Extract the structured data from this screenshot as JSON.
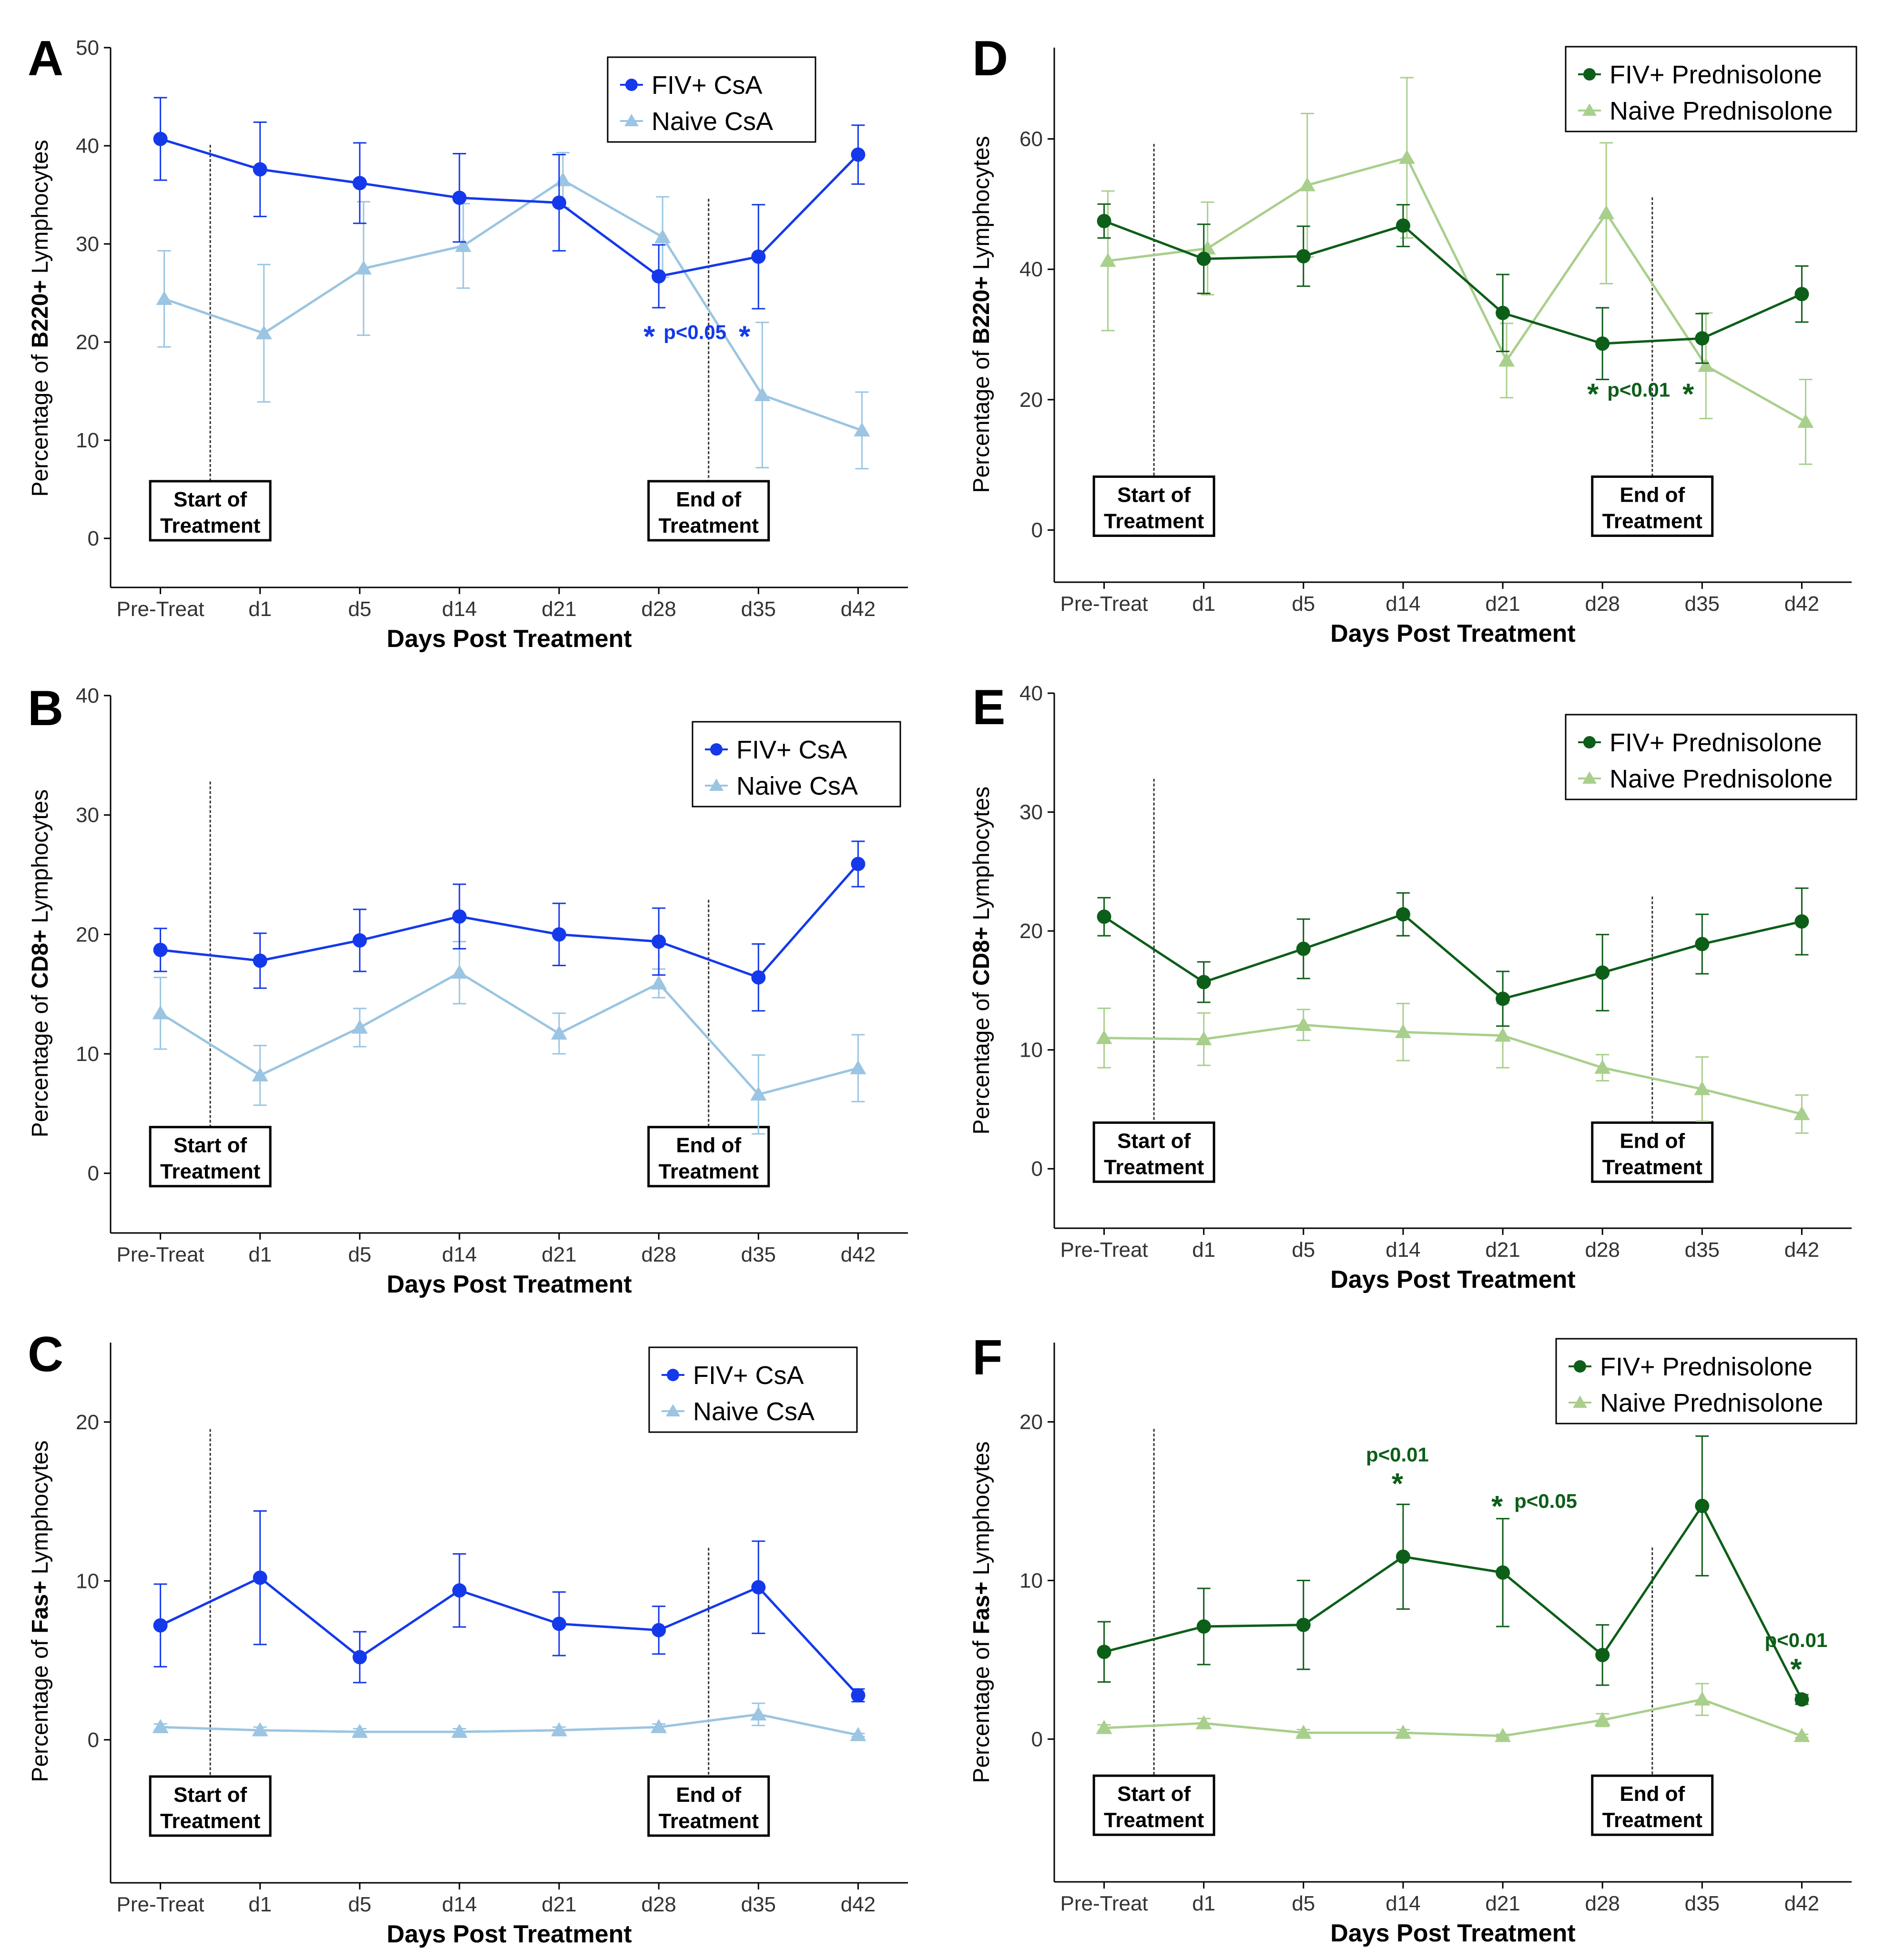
{
  "colors": {
    "fiv_csa": "#1439ea",
    "naive_csa": "#9bc5e2",
    "fiv_pred": "#0d5e18",
    "naive_pred": "#a9cf8c"
  },
  "shared": {
    "xlabel": "Days Post Treatment",
    "categories": [
      "Pre-Treat",
      "d1",
      "d5",
      "d14",
      "d21",
      "d28",
      "d35",
      "d42"
    ],
    "ylabel_prefix": "Percentage of ",
    "ylabel_suffix": " Lymphocytes",
    "start_box": [
      "Start of",
      "Treatment"
    ],
    "end_box": [
      "End of",
      "Treatment"
    ]
  },
  "chart_data": [
    {
      "panel": "A",
      "type": "line",
      "title": "",
      "xlabel": "Days Post Treatment",
      "ylabel": "Percentage of B220+ Lymphocytes",
      "ylabel_marker": "B220+",
      "ylim": [
        -5,
        50
      ],
      "yticks": [
        0,
        10,
        20,
        30,
        40,
        50
      ],
      "categories": [
        "Pre-Treat",
        "d1",
        "d5",
        "d14",
        "d21",
        "d28",
        "d35",
        "d42"
      ],
      "series": [
        {
          "name": "FIV+ CsA",
          "marker": "circle",
          "color": "#1439ea",
          "values": [
            40.7,
            37.6,
            36.2,
            34.7,
            34.2,
            26.7,
            28.7,
            39.1
          ],
          "err": [
            4.2,
            4.8,
            4.1,
            4.5,
            4.9,
            3.2,
            5.3,
            3.0
          ]
        },
        {
          "name": "Naive CsA",
          "marker": "triangle",
          "color": "#9bc5e2",
          "values": [
            24.4,
            20.9,
            27.5,
            29.8,
            36.5,
            30.7,
            14.6,
            11.0
          ],
          "err": [
            4.9,
            7.0,
            6.8,
            4.3,
            2.8,
            4.1,
            7.4,
            3.9
          ]
        }
      ],
      "legend": "top-right",
      "annotations": [
        {
          "label": "p<0.05",
          "star_left": "*",
          "star_right": "*",
          "color": "#1439ea"
        }
      ]
    },
    {
      "panel": "B",
      "type": "line",
      "title": "",
      "xlabel": "Days Post Treatment",
      "ylabel": "Percentage of CD8+ Lymphocytes",
      "ylabel_marker": "CD8+",
      "ylim": [
        -5,
        40
      ],
      "yticks": [
        0,
        10,
        20,
        30,
        40
      ],
      "categories": [
        "Pre-Treat",
        "d1",
        "d5",
        "d14",
        "d21",
        "d28",
        "d35",
        "d42"
      ],
      "series": [
        {
          "name": "FIV+ CsA",
          "marker": "circle",
          "color": "#1439ea",
          "values": [
            18.7,
            17.8,
            19.5,
            21.5,
            20.0,
            19.4,
            16.4,
            25.9
          ],
          "err": [
            1.8,
            2.3,
            2.6,
            2.7,
            2.6,
            2.8,
            2.8,
            1.9
          ]
        },
        {
          "name": "Naive CsA",
          "marker": "triangle",
          "color": "#9bc5e2",
          "values": [
            13.4,
            8.2,
            12.2,
            16.8,
            11.7,
            15.9,
            6.6,
            8.8
          ],
          "err": [
            3.0,
            2.5,
            1.6,
            2.6,
            1.7,
            1.2,
            3.3,
            2.8
          ]
        }
      ],
      "legend": "top-right",
      "annotations": []
    },
    {
      "panel": "C",
      "type": "line",
      "title": "",
      "xlabel": "Days Post Treatment",
      "ylabel": "Percentage of Fas+ Lymphocytes",
      "ylabel_marker": "Fas+",
      "ylim": [
        -9,
        25
      ],
      "yticks": [
        0,
        10,
        20
      ],
      "categories": [
        "Pre-Treat",
        "d1",
        "d5",
        "d14",
        "d21",
        "d28",
        "d35",
        "d42"
      ],
      "series": [
        {
          "name": "FIV+ CsA",
          "marker": "circle",
          "color": "#1439ea",
          "values": [
            7.2,
            10.2,
            5.2,
            9.4,
            7.3,
            6.9,
            9.6,
            2.8
          ],
          "err": [
            2.6,
            4.2,
            1.6,
            2.3,
            2.0,
            1.5,
            2.9,
            0.4
          ]
        },
        {
          "name": "Naive CsA",
          "marker": "triangle",
          "color": "#9bc5e2",
          "values": [
            0.8,
            0.6,
            0.5,
            0.5,
            0.6,
            0.8,
            1.6,
            0.3
          ],
          "err": [
            0.2,
            0.2,
            0.2,
            0.2,
            0.2,
            0.2,
            0.7,
            0.1
          ]
        }
      ],
      "legend": "top-right",
      "annotations": []
    },
    {
      "panel": "D",
      "type": "line",
      "title": "",
      "xlabel": "Days Post Treatment",
      "ylabel": "Percentage of B220+ Lymphocytes",
      "ylabel_marker": "B220+",
      "ylim": [
        -8,
        74
      ],
      "yticks": [
        0,
        20,
        40,
        60
      ],
      "categories": [
        "Pre-Treat",
        "d1",
        "d5",
        "d14",
        "d21",
        "d28",
        "d35",
        "d42"
      ],
      "series": [
        {
          "name": "FIV+ Prednisolone",
          "marker": "circle",
          "color": "#0d5e18",
          "values": [
            47.4,
            41.6,
            42.0,
            46.7,
            33.3,
            28.6,
            29.4,
            36.2
          ],
          "err": [
            2.6,
            5.3,
            4.6,
            3.2,
            5.9,
            5.5,
            3.8,
            4.3
          ]
        },
        {
          "name": "Naive Prednisolone",
          "marker": "triangle",
          "color": "#a9cf8c",
          "values": [
            41.3,
            43.2,
            52.9,
            57.1,
            26.0,
            48.6,
            25.2,
            16.6
          ],
          "err": [
            10.7,
            7.1,
            11.0,
            12.3,
            5.7,
            10.8,
            8.1,
            6.5
          ]
        }
      ],
      "legend": "top-right",
      "annotations": [
        {
          "label": "p<0.01",
          "star_left": "*",
          "star_right": "*",
          "color": "#0d5e18"
        }
      ]
    },
    {
      "panel": "E",
      "type": "line",
      "title": "",
      "xlabel": "Days Post Treatment",
      "ylabel": "Percentage of CD8+ Lymphocytes",
      "ylabel_marker": "CD8+",
      "ylim": [
        -5,
        40
      ],
      "yticks": [
        0,
        10,
        20,
        30,
        40
      ],
      "categories": [
        "Pre-Treat",
        "d1",
        "d5",
        "d14",
        "d21",
        "d28",
        "d35",
        "d42"
      ],
      "series": [
        {
          "name": "FIV+ Prednisolone",
          "marker": "circle",
          "color": "#0d5e18",
          "values": [
            21.2,
            15.7,
            18.5,
            21.4,
            14.3,
            16.5,
            18.9,
            20.8
          ],
          "err": [
            1.6,
            1.7,
            2.5,
            1.8,
            2.3,
            3.2,
            2.5,
            2.8
          ]
        },
        {
          "name": "Naive Prednisolone",
          "marker": "triangle",
          "color": "#a9cf8c",
          "values": [
            11.0,
            10.9,
            12.1,
            11.5,
            11.2,
            8.5,
            6.7,
            4.6
          ],
          "err": [
            2.5,
            2.2,
            1.3,
            2.4,
            2.7,
            1.1,
            2.7,
            1.6
          ]
        }
      ],
      "legend": "top-right",
      "annotations": []
    },
    {
      "panel": "F",
      "type": "line",
      "title": "",
      "xlabel": "Days Post Treatment",
      "ylabel": "Percentage of Fas+ Lymphocytes",
      "ylabel_marker": "Fas+",
      "ylim": [
        -9,
        25
      ],
      "yticks": [
        0,
        10,
        20
      ],
      "categories": [
        "Pre-Treat",
        "d1",
        "d5",
        "d14",
        "d21",
        "d28",
        "d35",
        "d42"
      ],
      "series": [
        {
          "name": "FIV+ Prednisolone",
          "marker": "circle",
          "color": "#0d5e18",
          "values": [
            5.5,
            7.1,
            7.2,
            11.5,
            10.5,
            5.3,
            14.7,
            2.5
          ],
          "err": [
            1.9,
            2.4,
            2.8,
            3.3,
            3.4,
            1.9,
            4.4,
            0.3
          ]
        },
        {
          "name": "Naive Prednisolone",
          "marker": "triangle",
          "color": "#a9cf8c",
          "values": [
            0.7,
            1.0,
            0.4,
            0.4,
            0.2,
            1.2,
            2.5,
            0.2
          ],
          "err": [
            0.2,
            0.3,
            0.2,
            0.2,
            0.1,
            0.4,
            1.0,
            0.1
          ]
        }
      ],
      "legend": "top-right",
      "annotations": [
        {
          "label": "p<0.01",
          "star": "*",
          "color": "#0d5e18"
        },
        {
          "label": "p<0.05",
          "star": "*",
          "color": "#0d5e18"
        },
        {
          "label": "p<0.01",
          "star": "*",
          "color": "#0d5e18"
        }
      ]
    }
  ]
}
